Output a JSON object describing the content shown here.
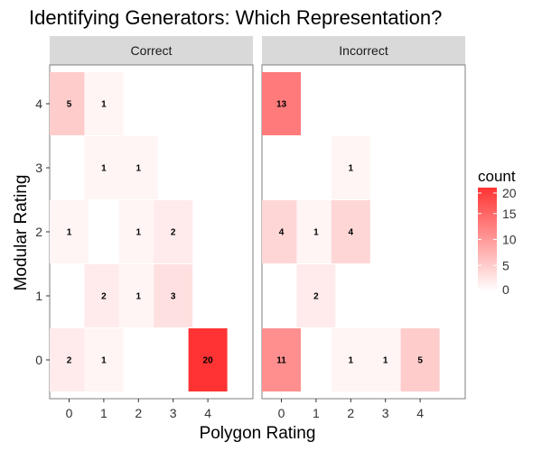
{
  "chart_data": {
    "type": "heatmap",
    "title": "Identifying Generators: Which Representation?",
    "xlabel": "Polygon Rating",
    "ylabel": "Modular Rating",
    "x_ticks": [
      "0",
      "1",
      "2",
      "3",
      "4"
    ],
    "y_ticks": [
      "0",
      "1",
      "2",
      "3",
      "4"
    ],
    "grid": false,
    "legend": {
      "title": "count",
      "placement": "right",
      "ticks": [
        "0",
        "5",
        "10",
        "15",
        "20"
      ],
      "range": [
        0,
        20
      ],
      "color_low": "#ffffff",
      "color_high": "#ff3333"
    },
    "panels": [
      {
        "name": "Correct",
        "cells": [
          {
            "x": 0,
            "y": 4,
            "count": 5
          },
          {
            "x": 1,
            "y": 4,
            "count": 1
          },
          {
            "x": 1,
            "y": 3,
            "count": 1
          },
          {
            "x": 2,
            "y": 3,
            "count": 1
          },
          {
            "x": 0,
            "y": 2,
            "count": 1
          },
          {
            "x": 2,
            "y": 2,
            "count": 1
          },
          {
            "x": 3,
            "y": 2,
            "count": 2
          },
          {
            "x": 1,
            "y": 1,
            "count": 2
          },
          {
            "x": 2,
            "y": 1,
            "count": 1
          },
          {
            "x": 3,
            "y": 1,
            "count": 3
          },
          {
            "x": 0,
            "y": 0,
            "count": 2
          },
          {
            "x": 1,
            "y": 0,
            "count": 1
          },
          {
            "x": 4,
            "y": 0,
            "count": 20
          }
        ]
      },
      {
        "name": "Incorrect",
        "cells": [
          {
            "x": 0,
            "y": 4,
            "count": 13
          },
          {
            "x": 2,
            "y": 3,
            "count": 1
          },
          {
            "x": 0,
            "y": 2,
            "count": 4
          },
          {
            "x": 1,
            "y": 2,
            "count": 1
          },
          {
            "x": 2,
            "y": 2,
            "count": 4
          },
          {
            "x": 1,
            "y": 1,
            "count": 2
          },
          {
            "x": 0,
            "y": 0,
            "count": 11
          },
          {
            "x": 2,
            "y": 0,
            "count": 1
          },
          {
            "x": 3,
            "y": 0,
            "count": 1
          },
          {
            "x": 4,
            "y": 0,
            "count": 5
          }
        ]
      }
    ]
  }
}
